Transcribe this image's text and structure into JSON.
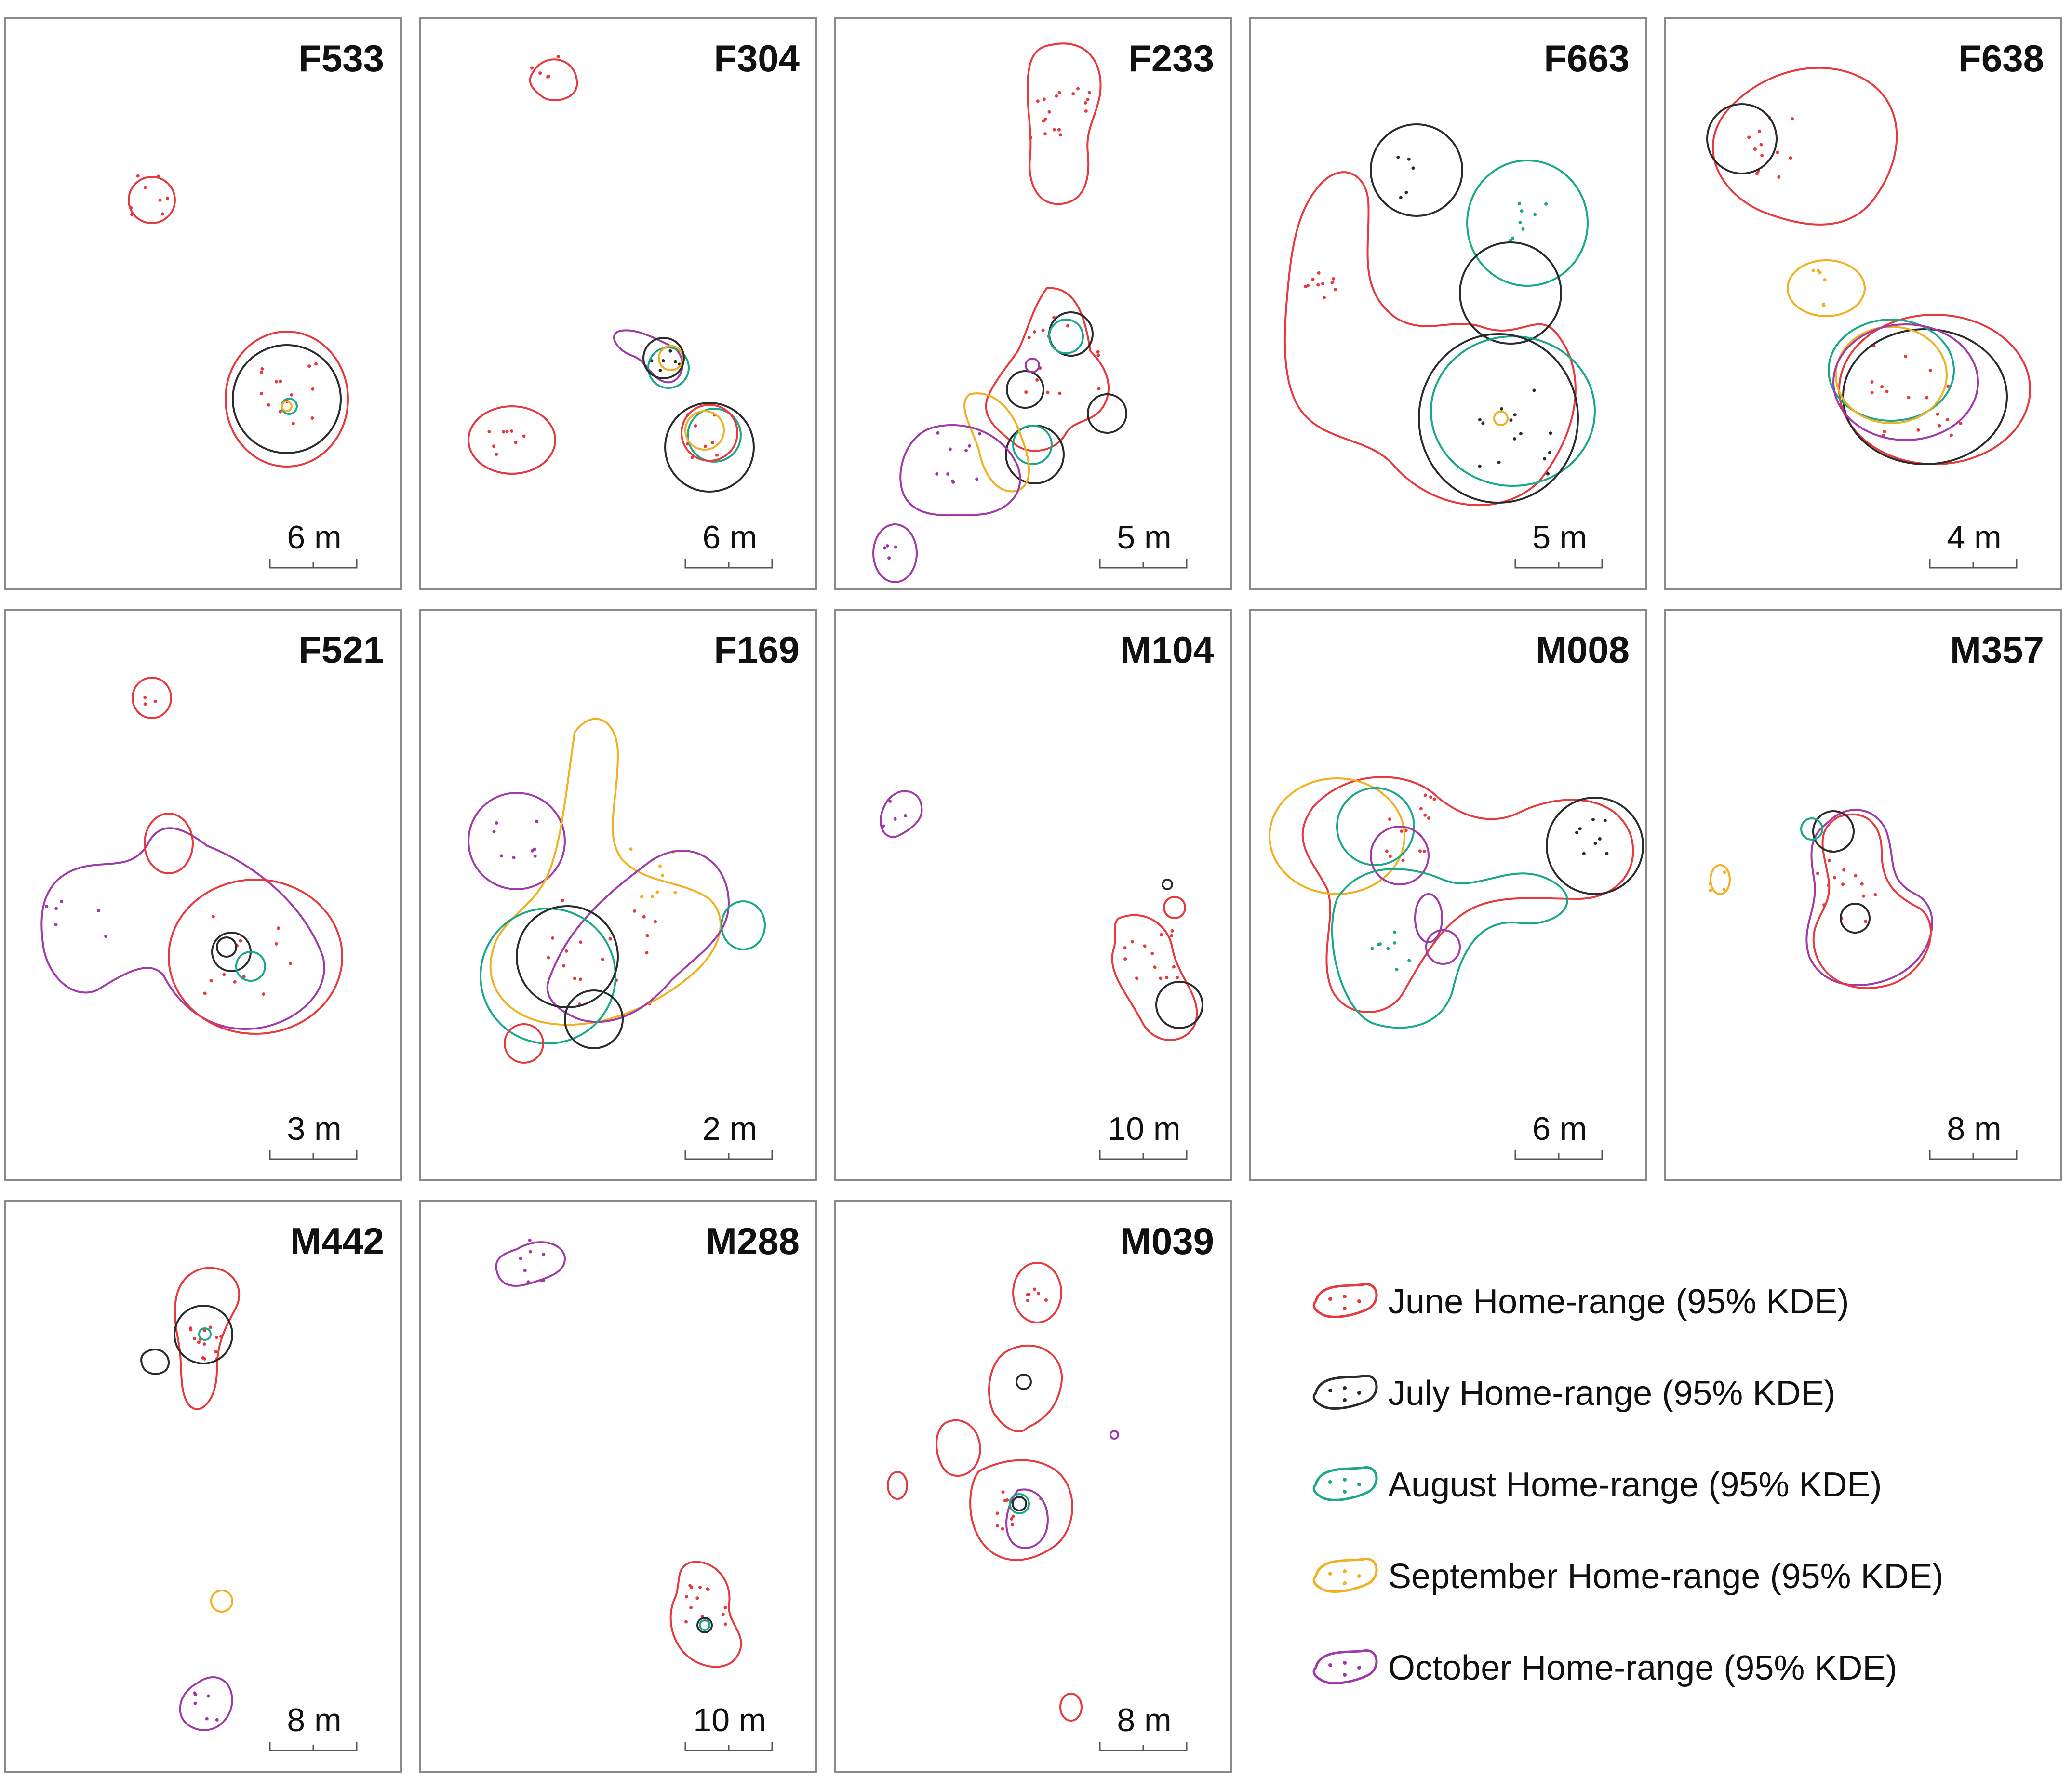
{
  "colors": {
    "june": "#e8393c",
    "july": "#2b2b2b",
    "august": "#1aa88a",
    "september": "#f0b020",
    "october": "#a03aa8"
  },
  "panels": [
    {
      "id": "F533",
      "scale": "6 m"
    },
    {
      "id": "F304",
      "scale": "6 m"
    },
    {
      "id": "F233",
      "scale": "5 m"
    },
    {
      "id": "F663",
      "scale": "5 m"
    },
    {
      "id": "F638",
      "scale": "4 m"
    },
    {
      "id": "F521",
      "scale": "3 m"
    },
    {
      "id": "F169",
      "scale": "2 m"
    },
    {
      "id": "M104",
      "scale": "10 m"
    },
    {
      "id": "M008",
      "scale": "6 m"
    },
    {
      "id": "M357",
      "scale": "8 m"
    },
    {
      "id": "M442",
      "scale": "8 m"
    },
    {
      "id": "M288",
      "scale": "10 m"
    },
    {
      "id": "M039",
      "scale": "8 m"
    }
  ],
  "legend": [
    {
      "label": "June Home-range (95% KDE)",
      "color": "#e8393c"
    },
    {
      "label": "July Home-range (95% KDE)",
      "color": "#2b2b2b"
    },
    {
      "label": "August Home-range (95% KDE)",
      "color": "#1aa88a"
    },
    {
      "label": "September Home-range (95% KDE)",
      "color": "#f0b020"
    },
    {
      "label": "October Home-range (95% KDE)",
      "color": "#a03aa8"
    }
  ]
}
